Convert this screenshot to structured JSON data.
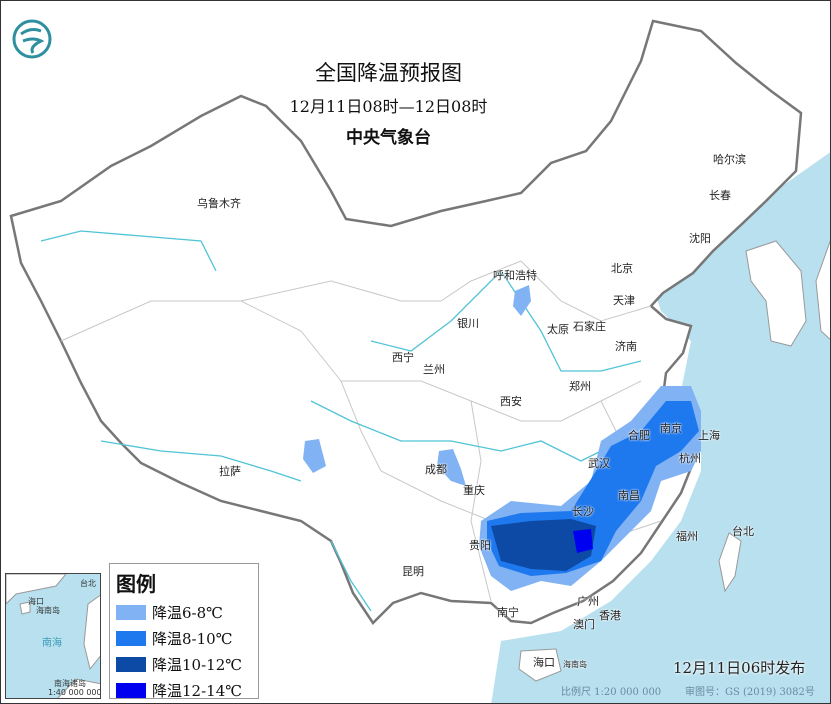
{
  "title": "全国降温预报图",
  "period": "12月11日08时—12日08时",
  "issuer": "中央气象台",
  "logo_icon": "cma-logo-icon",
  "legend": {
    "title": "图例",
    "items": [
      {
        "label": "降温6-8℃",
        "color": "#80b2f4"
      },
      {
        "label": "降温8-10℃",
        "color": "#1e78ee"
      },
      {
        "label": "降温10-12℃",
        "color": "#0d4aa6"
      },
      {
        "label": "降温12-14℃",
        "color": "#0000f0"
      }
    ]
  },
  "cities": [
    "乌鲁木齐",
    "呼和浩特",
    "北京",
    "天津",
    "哈尔滨",
    "长春",
    "沈阳",
    "银川",
    "太原",
    "石家庄",
    "济南",
    "西宁",
    "兰州",
    "郑州",
    "西安",
    "合肥",
    "南京",
    "上海",
    "杭州",
    "成都",
    "重庆",
    "武汉",
    "南昌",
    "长沙",
    "拉萨",
    "贵阳",
    "福州",
    "台北",
    "昆明",
    "南宁",
    "广州",
    "香港",
    "澳门",
    "海口",
    "海南岛"
  ],
  "inset": {
    "labels": [
      "海口",
      "海南岛",
      "台北",
      "南海",
      "南海诸岛"
    ],
    "scale": "1:40 000 000"
  },
  "published": "12月11日06时发布",
  "scale": "比例尺 1:20 000 000",
  "review_no": "审图号：GS (2019) 3082号",
  "colors": {
    "sea": "#b8e0ef",
    "river": "#4fc4d6",
    "border": "#777777"
  }
}
